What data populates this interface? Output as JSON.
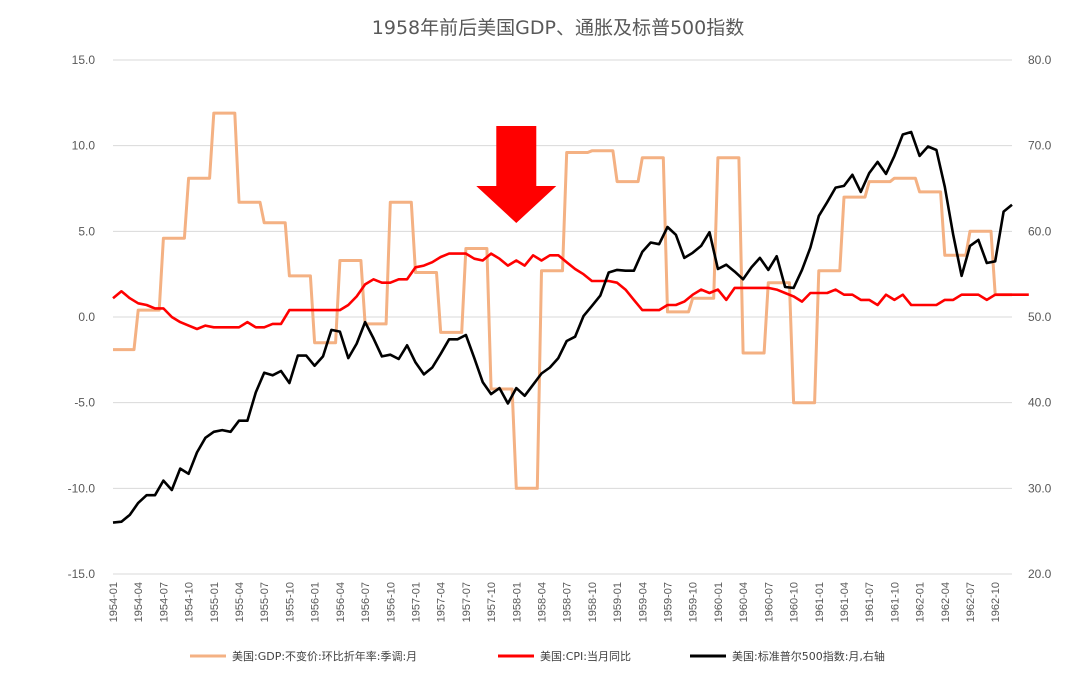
{
  "chart_data": {
    "type": "line",
    "title": "1958年前后美国GDP、通胀及标普500指数",
    "y_left": {
      "min": -15,
      "max": 15,
      "ticks": [
        "15.0",
        "10.0",
        "5.0",
        "0.0",
        "-5.0",
        "-10.0",
        "-15.0"
      ],
      "tick_values": [
        15,
        10,
        5,
        0,
        -5,
        -10,
        -15
      ]
    },
    "y_right": {
      "min": 20,
      "max": 80,
      "ticks": [
        "80.0",
        "70.0",
        "60.0",
        "50.0",
        "40.0",
        "30.0",
        "20.0"
      ],
      "tick_values": [
        80,
        70,
        60,
        50,
        40,
        30,
        20
      ]
    },
    "x_tick_labels": [
      "1954-01",
      "1954-04",
      "1954-07",
      "1954-10",
      "1955-01",
      "1955-04",
      "1955-07",
      "1955-10",
      "1956-01",
      "1956-04",
      "1956-07",
      "1956-10",
      "1957-01",
      "1957-04",
      "1957-07",
      "1957-10",
      "1958-01",
      "1958-04",
      "1958-07",
      "1958-10",
      "1959-01",
      "1959-04",
      "1959-07",
      "1959-10",
      "1960-01",
      "1960-04",
      "1960-07",
      "1960-10",
      "1961-01",
      "1961-04",
      "1961-07",
      "1961-10",
      "1962-01",
      "1962-04",
      "1962-07",
      "1962-10"
    ],
    "annotation": {
      "type": "down-arrow",
      "near": "1958-01",
      "color": "#ff0000"
    },
    "series": [
      {
        "name": "美国:GDP:不变价:环比折年率:季调:月",
        "axis": "left",
        "color": "#f4b183",
        "step": true,
        "points": [
          [
            "1954-01",
            -1.9
          ],
          [
            "1954-04",
            0.4
          ],
          [
            "1954-07",
            4.6
          ],
          [
            "1954-10",
            8.1
          ],
          [
            "1955-01",
            11.9
          ],
          [
            "1955-04",
            6.7
          ],
          [
            "1955-07",
            5.5
          ],
          [
            "1955-10",
            2.4
          ],
          [
            "1956-01",
            -1.5
          ],
          [
            "1956-04",
            3.3
          ],
          [
            "1956-07",
            -0.4
          ],
          [
            "1956-10",
            6.7
          ],
          [
            "1957-01",
            2.6
          ],
          [
            "1957-04",
            -0.9
          ],
          [
            "1957-07",
            4.0
          ],
          [
            "1957-10",
            -4.2
          ],
          [
            "1958-01",
            -10.0
          ],
          [
            "1958-04",
            2.7
          ],
          [
            "1958-07",
            9.6
          ],
          [
            "1958-10",
            9.7
          ],
          [
            "1959-01",
            7.9
          ],
          [
            "1959-04",
            9.3
          ],
          [
            "1959-07",
            0.3
          ],
          [
            "1959-10",
            1.1
          ],
          [
            "1960-01",
            9.3
          ],
          [
            "1960-04",
            -2.1
          ],
          [
            "1960-07",
            2.0
          ],
          [
            "1960-10",
            -5.0
          ],
          [
            "1961-01",
            2.7
          ],
          [
            "1961-04",
            7.0
          ],
          [
            "1961-07",
            7.9
          ],
          [
            "1961-10",
            8.1
          ],
          [
            "1962-01",
            7.3
          ],
          [
            "1962-04",
            3.6
          ],
          [
            "1962-07",
            5.0
          ],
          [
            "1962-10",
            1.3
          ]
        ]
      },
      {
        "name": "美国:CPI:当月同比",
        "axis": "left",
        "color": "#ff0000",
        "step": false,
        "values_monthly_from": "1954-01",
        "values": [
          1.1,
          1.5,
          1.1,
          0.8,
          0.7,
          0.5,
          0.5,
          0.0,
          -0.3,
          -0.5,
          -0.7,
          -0.5,
          -0.6,
          -0.6,
          -0.6,
          -0.6,
          -0.3,
          -0.6,
          -0.6,
          -0.4,
          -0.4,
          0.4,
          0.4,
          0.4,
          0.4,
          0.4,
          0.4,
          0.4,
          0.7,
          1.2,
          1.9,
          2.2,
          2.0,
          2.0,
          2.2,
          2.2,
          2.9,
          3.0,
          3.2,
          3.5,
          3.7,
          3.7,
          3.7,
          3.4,
          3.3,
          3.7,
          3.4,
          3.0,
          3.3,
          3.0,
          3.6,
          3.3,
          3.6,
          3.6,
          3.2,
          2.8,
          2.5,
          2.1,
          2.1,
          2.1,
          2.0,
          1.6,
          1.0,
          0.4,
          0.4,
          0.4,
          0.7,
          0.7,
          0.9,
          1.3,
          1.6,
          1.4,
          1.6,
          1.0,
          1.7,
          1.7,
          1.7,
          1.7,
          1.7,
          1.6,
          1.4,
          1.2,
          0.9,
          1.4,
          1.4,
          1.4,
          1.6,
          1.3,
          1.3,
          1.0,
          1.0,
          0.7,
          1.3,
          1.0,
          1.3,
          0.7,
          0.7,
          0.7,
          0.7,
          1.0,
          1.0,
          1.3,
          1.3,
          1.3,
          1.0,
          1.3,
          1.3,
          1.3,
          1.3,
          1.3
        ]
      },
      {
        "name": "美国:标准普尔500指数:月,右轴",
        "axis": "right",
        "color": "#000000",
        "step": false,
        "values_monthly_from": "1954-01",
        "values": [
          26.0,
          26.1,
          26.9,
          28.3,
          29.2,
          29.2,
          30.9,
          29.8,
          32.3,
          31.7,
          34.2,
          35.9,
          36.6,
          36.8,
          36.6,
          37.9,
          37.9,
          41.2,
          43.5,
          43.2,
          43.7,
          42.3,
          45.5,
          45.5,
          44.3,
          45.4,
          48.5,
          48.3,
          45.2,
          46.9,
          49.4,
          47.5,
          45.4,
          45.6,
          45.1,
          46.7,
          44.7,
          43.3,
          44.1,
          45.7,
          47.4,
          47.4,
          47.9,
          45.2,
          42.4,
          41.0,
          41.7,
          39.9,
          41.7,
          40.8,
          42.1,
          43.4,
          44.1,
          45.2,
          47.2,
          47.7,
          50.1,
          51.3,
          52.5,
          55.2,
          55.5,
          55.4,
          55.4,
          57.6,
          58.7,
          58.5,
          60.5,
          59.6,
          56.9,
          57.5,
          58.3,
          59.9,
          55.6,
          56.1,
          55.3,
          54.4,
          55.8,
          56.9,
          55.5,
          57.1,
          53.5,
          53.4,
          55.5,
          58.1,
          61.8,
          63.4,
          65.1,
          65.3,
          66.6,
          64.6,
          66.8,
          68.1,
          66.7,
          68.8,
          71.3,
          71.6,
          68.8,
          69.9,
          69.5,
          65.2,
          59.6,
          54.8,
          58.3,
          59.0,
          56.3,
          56.5,
          62.3,
          63.1
        ]
      }
    ],
    "legend": {
      "placement": "bottom"
    }
  }
}
